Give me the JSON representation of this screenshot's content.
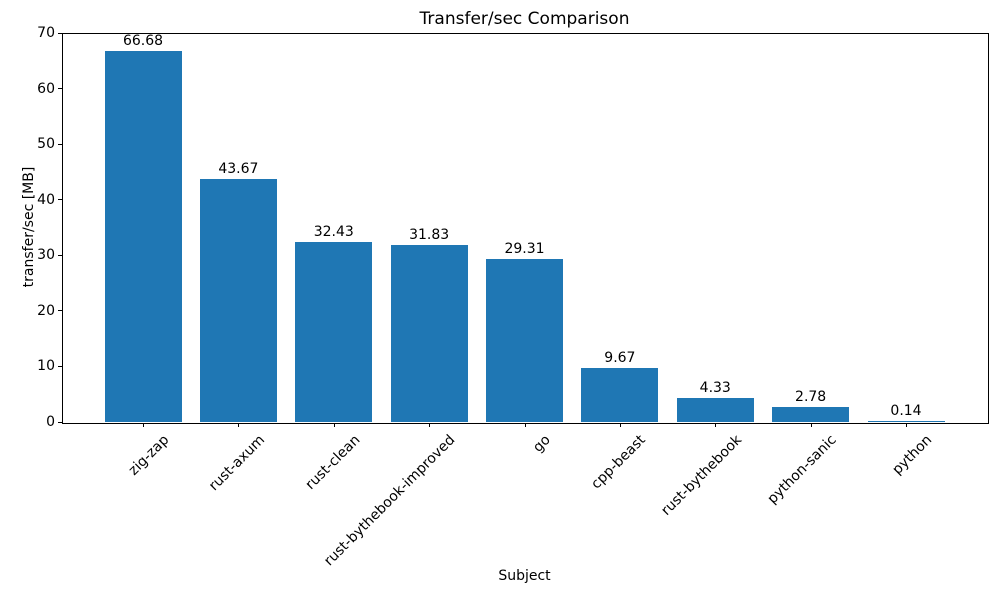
{
  "chart_data": {
    "type": "bar",
    "title": "Transfer/sec Comparison",
    "xlabel": "Subject",
    "ylabel": "transfer/sec [MB]",
    "categories": [
      "zig-zap",
      "rust-axum",
      "rust-clean",
      "rust-bythebook-improved",
      "go",
      "cpp-beast",
      "rust-bythebook",
      "python-sanic",
      "python"
    ],
    "values": [
      66.68,
      43.67,
      32.43,
      31.83,
      29.31,
      9.67,
      4.33,
      2.78,
      0.14
    ],
    "value_labels": [
      "66.68",
      "43.67",
      "32.43",
      "31.83",
      "29.31",
      "9.67",
      "4.33",
      "2.78",
      "0.14"
    ],
    "ylim": [
      0,
      70
    ],
    "yticks": [
      0,
      10,
      20,
      30,
      40,
      50,
      60,
      70
    ],
    "bar_color": "#1f77b4",
    "axis_color": "#000000",
    "grid": false,
    "legend": null,
    "x_tick_rotation_deg": 45
  }
}
